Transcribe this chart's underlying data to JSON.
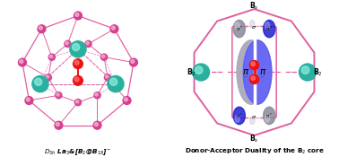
{
  "bg_color": "#ffffff",
  "pink": "#F472B0",
  "pink_dark": "#D44090",
  "pink_light": "#F9A8D4",
  "pink_bond": "#E060A0",
  "teal": "#5EDBD0",
  "teal_dark": "#2BAF9F",
  "red": "#EE1111",
  "blue_dark": "#2020CC",
  "blue_mid": "#5555EE",
  "blue_light": "#9999FF",
  "gray_dark": "#888899",
  "gray_mid": "#AAAABC",
  "gray_light": "#CCCCDD",
  "white": "#FFFFFF",
  "black": "#000000",
  "title_left": "$D_{3h}$ La$_3$&[B$_2$@B$_{18}$]$^{-}$",
  "title_right": "Donor-Acceptor Duality of the B$_2$ core",
  "label_Bs_top": "B$_s$",
  "label_Bs_bot": "B$_s$",
  "label_B2_left": "B$_2$",
  "label_B2_right": "B$_2$"
}
